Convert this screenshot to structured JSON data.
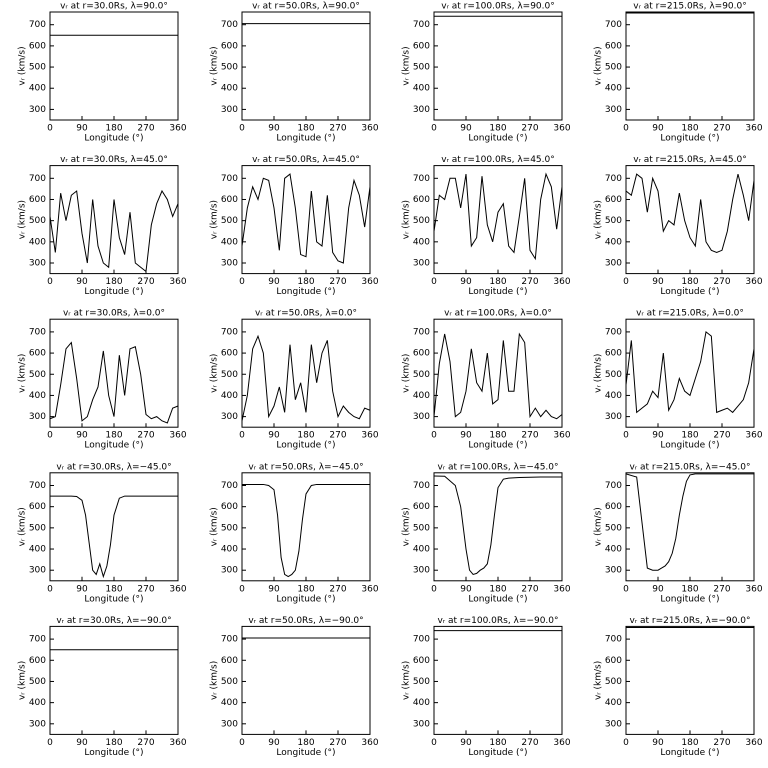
{
  "chart_data": [
    {
      "type": "line",
      "title": "vᵣ at r=30.0Rs, λ=90.0°",
      "xlabel": "Longitude (°)",
      "ylabel": "vᵣ (km/s)",
      "x": [
        0,
        360
      ],
      "values": [
        650,
        650
      ],
      "xlim": [
        0,
        360
      ],
      "ylim": [
        250,
        760
      ],
      "xticks": [
        0,
        90,
        180,
        270,
        360
      ],
      "yticks": [
        300,
        400,
        500,
        600,
        700
      ]
    },
    {
      "type": "line",
      "title": "vᵣ at r=50.0Rs, λ=90.0°",
      "xlabel": "Longitude (°)",
      "ylabel": "vᵣ (km/s)",
      "x": [
        0,
        360
      ],
      "values": [
        705,
        705
      ],
      "xlim": [
        0,
        360
      ],
      "ylim": [
        250,
        760
      ],
      "xticks": [
        0,
        90,
        180,
        270,
        360
      ],
      "yticks": [
        300,
        400,
        500,
        600,
        700
      ]
    },
    {
      "type": "line",
      "title": "vᵣ at r=100.0Rs, λ=90.0°",
      "xlabel": "Longitude (°)",
      "ylabel": "vᵣ (km/s)",
      "x": [
        0,
        360
      ],
      "values": [
        740,
        740
      ],
      "xlim": [
        0,
        360
      ],
      "ylim": [
        250,
        760
      ],
      "xticks": [
        0,
        90,
        180,
        270,
        360
      ],
      "yticks": [
        300,
        400,
        500,
        600,
        700
      ]
    },
    {
      "type": "line",
      "title": "vᵣ at r=215.0Rs, λ=90.0°",
      "xlabel": "Longitude (°)",
      "ylabel": "vᵣ (km/s)",
      "x": [
        0,
        360
      ],
      "values": [
        755,
        755
      ],
      "xlim": [
        0,
        360
      ],
      "ylim": [
        250,
        760
      ],
      "xticks": [
        0,
        90,
        180,
        270,
        360
      ],
      "yticks": [
        300,
        400,
        500,
        600,
        700
      ]
    },
    {
      "type": "line",
      "title": "vᵣ at r=30.0Rs, λ=45.0°",
      "xlabel": "Longitude (°)",
      "ylabel": "vᵣ (km/s)",
      "x": [
        0,
        15,
        30,
        45,
        60,
        75,
        90,
        105,
        120,
        135,
        150,
        165,
        180,
        195,
        210,
        225,
        240,
        255,
        270,
        285,
        300,
        315,
        330,
        345,
        360
      ],
      "values": [
        520,
        350,
        630,
        500,
        620,
        640,
        440,
        300,
        600,
        380,
        300,
        280,
        600,
        420,
        340,
        540,
        300,
        280,
        260,
        480,
        580,
        640,
        600,
        520,
        580
      ],
      "xlim": [
        0,
        360
      ],
      "ylim": [
        250,
        760
      ],
      "xticks": [
        0,
        90,
        180,
        270,
        360
      ],
      "yticks": [
        300,
        400,
        500,
        600,
        700
      ]
    },
    {
      "type": "line",
      "title": "vᵣ at r=50.0Rs, λ=45.0°",
      "xlabel": "Longitude (°)",
      "ylabel": "vᵣ (km/s)",
      "x": [
        0,
        15,
        30,
        45,
        60,
        75,
        90,
        105,
        120,
        135,
        150,
        165,
        180,
        195,
        210,
        225,
        240,
        255,
        270,
        285,
        300,
        315,
        330,
        345,
        360
      ],
      "values": [
        380,
        560,
        660,
        600,
        700,
        690,
        560,
        360,
        700,
        720,
        560,
        340,
        330,
        640,
        400,
        380,
        620,
        350,
        310,
        300,
        560,
        690,
        620,
        470,
        660
      ],
      "xlim": [
        0,
        360
      ],
      "ylim": [
        250,
        760
      ],
      "xticks": [
        0,
        90,
        180,
        270,
        360
      ],
      "yticks": [
        300,
        400,
        500,
        600,
        700
      ]
    },
    {
      "type": "line",
      "title": "vᵣ at r=100.0Rs, λ=45.0°",
      "xlabel": "Longitude (°)",
      "ylabel": "vᵣ (km/s)",
      "x": [
        0,
        15,
        30,
        45,
        60,
        75,
        90,
        105,
        120,
        135,
        150,
        165,
        180,
        195,
        210,
        225,
        240,
        255,
        270,
        285,
        300,
        315,
        330,
        345,
        360
      ],
      "values": [
        450,
        620,
        600,
        700,
        700,
        560,
        720,
        380,
        420,
        710,
        480,
        400,
        540,
        580,
        380,
        350,
        520,
        700,
        360,
        320,
        600,
        720,
        660,
        460,
        660
      ],
      "xlim": [
        0,
        360
      ],
      "ylim": [
        250,
        760
      ],
      "xticks": [
        0,
        90,
        180,
        270,
        360
      ],
      "yticks": [
        300,
        400,
        500,
        600,
        700
      ]
    },
    {
      "type": "line",
      "title": "vᵣ at r=215.0Rs, λ=45.0°",
      "xlabel": "Longitude (°)",
      "ylabel": "vᵣ (km/s)",
      "x": [
        0,
        15,
        30,
        45,
        60,
        75,
        90,
        105,
        120,
        135,
        150,
        165,
        180,
        195,
        210,
        225,
        240,
        255,
        270,
        285,
        300,
        315,
        330,
        345,
        360
      ],
      "values": [
        640,
        620,
        720,
        700,
        540,
        700,
        640,
        450,
        500,
        480,
        630,
        500,
        420,
        380,
        600,
        400,
        360,
        350,
        360,
        450,
        600,
        720,
        620,
        500,
        690
      ],
      "xlim": [
        0,
        360
      ],
      "ylim": [
        250,
        760
      ],
      "xticks": [
        0,
        90,
        180,
        270,
        360
      ],
      "yticks": [
        300,
        400,
        500,
        600,
        700
      ]
    },
    {
      "type": "line",
      "title": "vᵣ at r=30.0Rs, λ=0.0°",
      "xlabel": "Longitude (°)",
      "ylabel": "vᵣ (km/s)",
      "x": [
        0,
        15,
        30,
        45,
        60,
        75,
        90,
        105,
        120,
        135,
        150,
        165,
        180,
        195,
        210,
        225,
        240,
        255,
        270,
        285,
        300,
        315,
        330,
        345,
        360
      ],
      "values": [
        290,
        300,
        450,
        620,
        650,
        480,
        280,
        300,
        380,
        440,
        610,
        400,
        300,
        590,
        400,
        620,
        630,
        500,
        310,
        290,
        300,
        280,
        270,
        340,
        350
      ],
      "xlim": [
        0,
        360
      ],
      "ylim": [
        250,
        760
      ],
      "xticks": [
        0,
        90,
        180,
        270,
        360
      ],
      "yticks": [
        300,
        400,
        500,
        600,
        700
      ]
    },
    {
      "type": "line",
      "title": "vᵣ at r=50.0Rs, λ=0.0°",
      "xlabel": "Longitude (°)",
      "ylabel": "vᵣ (km/s)",
      "x": [
        0,
        15,
        30,
        45,
        60,
        75,
        90,
        105,
        120,
        135,
        150,
        165,
        180,
        195,
        210,
        225,
        240,
        255,
        270,
        285,
        300,
        315,
        330,
        345,
        360
      ],
      "values": [
        280,
        400,
        620,
        680,
        600,
        300,
        350,
        440,
        320,
        640,
        380,
        460,
        320,
        640,
        460,
        600,
        660,
        420,
        300,
        350,
        320,
        300,
        290,
        340,
        330
      ],
      "xlim": [
        0,
        360
      ],
      "ylim": [
        250,
        760
      ],
      "xticks": [
        0,
        90,
        180,
        270,
        360
      ],
      "yticks": [
        300,
        400,
        500,
        600,
        700
      ]
    },
    {
      "type": "line",
      "title": "vᵣ at r=100.0Rs, λ=0.0°",
      "xlabel": "Longitude (°)",
      "ylabel": "vᵣ (km/s)",
      "x": [
        0,
        15,
        30,
        45,
        60,
        75,
        90,
        105,
        120,
        135,
        150,
        165,
        180,
        195,
        210,
        225,
        240,
        255,
        270,
        285,
        300,
        315,
        330,
        345,
        360
      ],
      "values": [
        300,
        550,
        690,
        560,
        300,
        320,
        420,
        620,
        460,
        420,
        600,
        360,
        380,
        660,
        420,
        420,
        690,
        650,
        300,
        340,
        300,
        330,
        300,
        290,
        310
      ],
      "xlim": [
        0,
        360
      ],
      "ylim": [
        250,
        760
      ],
      "xticks": [
        0,
        90,
        180,
        270,
        360
      ],
      "yticks": [
        300,
        400,
        500,
        600,
        700
      ]
    },
    {
      "type": "line",
      "title": "vᵣ at r=215.0Rs, λ=0.0°",
      "xlabel": "Longitude (°)",
      "ylabel": "vᵣ (km/s)",
      "x": [
        0,
        15,
        30,
        45,
        60,
        75,
        90,
        105,
        120,
        135,
        150,
        165,
        180,
        195,
        210,
        225,
        240,
        255,
        270,
        285,
        300,
        315,
        330,
        345,
        360
      ],
      "values": [
        450,
        660,
        320,
        340,
        360,
        420,
        390,
        600,
        330,
        380,
        480,
        420,
        400,
        480,
        560,
        700,
        680,
        320,
        330,
        340,
        320,
        350,
        380,
        460,
        620
      ],
      "xlim": [
        0,
        360
      ],
      "ylim": [
        250,
        760
      ],
      "xticks": [
        0,
        90,
        180,
        270,
        360
      ],
      "yticks": [
        300,
        400,
        500,
        600,
        700
      ]
    },
    {
      "type": "line",
      "title": "vᵣ at r=30.0Rs, λ=−45.0°",
      "xlabel": "Longitude (°)",
      "ylabel": "vᵣ (km/s)",
      "x": [
        0,
        30,
        60,
        75,
        90,
        100,
        110,
        120,
        130,
        140,
        150,
        160,
        170,
        180,
        195,
        210,
        240,
        300,
        360
      ],
      "values": [
        650,
        650,
        650,
        648,
        630,
        560,
        430,
        300,
        280,
        330,
        270,
        320,
        420,
        560,
        640,
        650,
        650,
        650,
        650
      ],
      "xlim": [
        0,
        360
      ],
      "ylim": [
        250,
        760
      ],
      "xticks": [
        0,
        90,
        180,
        270,
        360
      ],
      "yticks": [
        300,
        400,
        500,
        600,
        700
      ]
    },
    {
      "type": "line",
      "title": "vᵣ at r=50.0Rs, λ=−45.0°",
      "xlabel": "Longitude (°)",
      "ylabel": "vᵣ (km/s)",
      "x": [
        0,
        30,
        60,
        75,
        90,
        100,
        110,
        120,
        130,
        140,
        150,
        160,
        170,
        180,
        195,
        210,
        240,
        300,
        360
      ],
      "values": [
        705,
        705,
        705,
        700,
        680,
        560,
        360,
        280,
        270,
        280,
        300,
        390,
        540,
        660,
        700,
        705,
        705,
        705,
        705
      ],
      "xlim": [
        0,
        360
      ],
      "ylim": [
        250,
        760
      ],
      "xticks": [
        0,
        90,
        180,
        270,
        360
      ],
      "yticks": [
        300,
        400,
        500,
        600,
        700
      ]
    },
    {
      "type": "line",
      "title": "vᵣ at r=100.0Rs, λ=−45.0°",
      "xlabel": "Longitude (°)",
      "ylabel": "vᵣ (km/s)",
      "x": [
        0,
        30,
        60,
        75,
        90,
        100,
        110,
        120,
        130,
        140,
        150,
        160,
        170,
        180,
        195,
        210,
        240,
        300,
        360
      ],
      "values": [
        745,
        744,
        700,
        600,
        400,
        300,
        280,
        285,
        300,
        310,
        330,
        420,
        560,
        690,
        730,
        735,
        738,
        740,
        740
      ],
      "xlim": [
        0,
        360
      ],
      "ylim": [
        250,
        760
      ],
      "xticks": [
        0,
        90,
        180,
        270,
        360
      ],
      "yticks": [
        300,
        400,
        500,
        600,
        700
      ]
    },
    {
      "type": "line",
      "title": "vᵣ at r=215.0Rs, λ=−45.0°",
      "xlabel": "Longitude (°)",
      "ylabel": "vᵣ (km/s)",
      "x": [
        0,
        30,
        60,
        75,
        90,
        100,
        110,
        120,
        130,
        140,
        150,
        160,
        170,
        180,
        195,
        210,
        240,
        300,
        360
      ],
      "values": [
        755,
        740,
        310,
        300,
        300,
        310,
        320,
        340,
        380,
        450,
        560,
        650,
        720,
        750,
        755,
        755,
        755,
        755,
        755
      ],
      "xlim": [
        0,
        360
      ],
      "ylim": [
        250,
        760
      ],
      "xticks": [
        0,
        90,
        180,
        270,
        360
      ],
      "yticks": [
        300,
        400,
        500,
        600,
        700
      ]
    },
    {
      "type": "line",
      "title": "vᵣ at r=30.0Rs, λ=−90.0°",
      "xlabel": "Longitude (°)",
      "ylabel": "vᵣ (km/s)",
      "x": [
        0,
        360
      ],
      "values": [
        650,
        650
      ],
      "xlim": [
        0,
        360
      ],
      "ylim": [
        250,
        760
      ],
      "xticks": [
        0,
        90,
        180,
        270,
        360
      ],
      "yticks": [
        300,
        400,
        500,
        600,
        700
      ]
    },
    {
      "type": "line",
      "title": "vᵣ at r=50.0Rs, λ=−90.0°",
      "xlabel": "Longitude (°)",
      "ylabel": "vᵣ (km/s)",
      "x": [
        0,
        360
      ],
      "values": [
        705,
        705
      ],
      "xlim": [
        0,
        360
      ],
      "ylim": [
        250,
        760
      ],
      "xticks": [
        0,
        90,
        180,
        270,
        360
      ],
      "yticks": [
        300,
        400,
        500,
        600,
        700
      ]
    },
    {
      "type": "line",
      "title": "vᵣ at r=100.0Rs, λ=−90.0°",
      "xlabel": "Longitude (°)",
      "ylabel": "vᵣ (km/s)",
      "x": [
        0,
        360
      ],
      "values": [
        740,
        740
      ],
      "xlim": [
        0,
        360
      ],
      "ylim": [
        250,
        760
      ],
      "xticks": [
        0,
        90,
        180,
        270,
        360
      ],
      "yticks": [
        300,
        400,
        500,
        600,
        700
      ]
    },
    {
      "type": "line",
      "title": "vᵣ at r=215.0Rs, λ=−90.0°",
      "xlabel": "Longitude (°)",
      "ylabel": "vᵣ (km/s)",
      "x": [
        0,
        360
      ],
      "values": [
        755,
        755
      ],
      "xlim": [
        0,
        360
      ],
      "ylim": [
        250,
        760
      ],
      "xticks": [
        0,
        90,
        180,
        270,
        360
      ],
      "yticks": [
        300,
        400,
        500,
        600,
        700
      ]
    }
  ]
}
